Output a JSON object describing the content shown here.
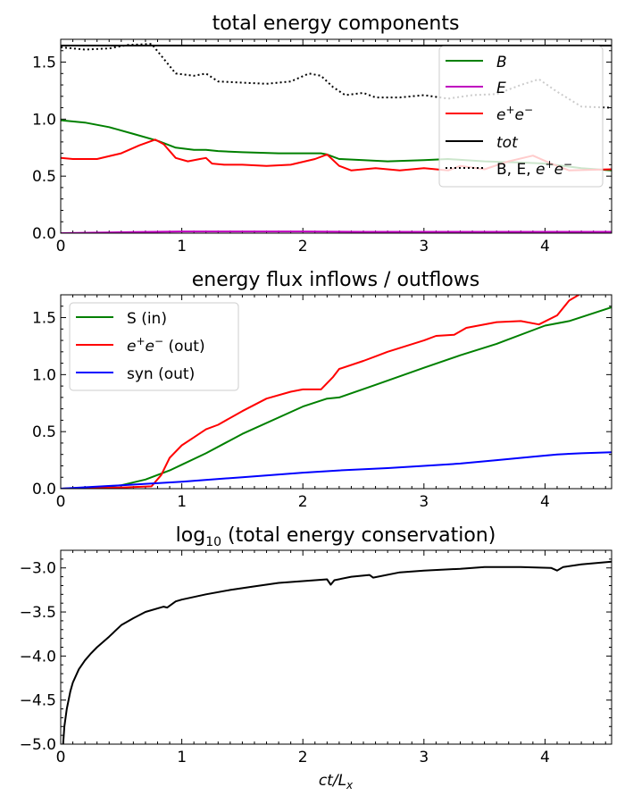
{
  "chart_data": [
    {
      "type": "line",
      "title": "total energy components",
      "xlim": [
        0,
        4.55
      ],
      "ylim": [
        0,
        1.7
      ],
      "xticks": [
        "0",
        "1",
        "2",
        "3",
        "4"
      ],
      "yticks": [
        "0.0",
        "0.5",
        "1.0",
        "1.5"
      ],
      "legend_position": "top-right",
      "series": [
        {
          "key": "B",
          "name": "B",
          "color": "#008000",
          "style": "solid",
          "x": [
            0,
            0.2,
            0.4,
            0.6,
            0.8,
            0.95,
            1.1,
            1.2,
            1.3,
            1.5,
            1.8,
            2.0,
            2.15,
            2.2,
            2.3,
            2.5,
            2.7,
            3.0,
            3.2,
            3.5,
            3.8,
            4.0,
            4.3,
            4.55
          ],
          "y": [
            0.99,
            0.97,
            0.93,
            0.87,
            0.81,
            0.75,
            0.73,
            0.73,
            0.72,
            0.71,
            0.7,
            0.7,
            0.7,
            0.69,
            0.65,
            0.64,
            0.63,
            0.64,
            0.65,
            0.63,
            0.62,
            0.61,
            0.57,
            0.55
          ]
        },
        {
          "key": "E",
          "name": "E",
          "color": "#bf00bf",
          "style": "solid",
          "x": [
            0,
            0.3,
            0.6,
            1.0,
            1.5,
            2.0,
            2.5,
            3.0,
            3.5,
            4.0,
            4.55
          ],
          "y": [
            0.0,
            0.005,
            0.01,
            0.015,
            0.015,
            0.015,
            0.012,
            0.012,
            0.012,
            0.012,
            0.012
          ]
        },
        {
          "key": "ee",
          "name": "e+e−",
          "color": "#ff0000",
          "style": "solid",
          "x": [
            0,
            0.1,
            0.3,
            0.5,
            0.65,
            0.78,
            0.85,
            0.95,
            1.05,
            1.15,
            1.2,
            1.25,
            1.35,
            1.5,
            1.7,
            1.9,
            2.1,
            2.2,
            2.3,
            2.4,
            2.6,
            2.8,
            3.0,
            3.2,
            3.3,
            3.5,
            3.7,
            3.9,
            4.05,
            4.2,
            4.55
          ],
          "y": [
            0.66,
            0.65,
            0.65,
            0.7,
            0.77,
            0.82,
            0.78,
            0.66,
            0.63,
            0.65,
            0.66,
            0.61,
            0.6,
            0.6,
            0.59,
            0.6,
            0.65,
            0.69,
            0.59,
            0.55,
            0.57,
            0.55,
            0.57,
            0.55,
            0.59,
            0.56,
            0.63,
            0.68,
            0.61,
            0.55,
            0.56
          ]
        },
        {
          "key": "tot",
          "name": "tot",
          "color": "#000000",
          "style": "solid",
          "x": [
            0,
            4.55
          ],
          "y": [
            1.645,
            1.645
          ]
        },
        {
          "key": "sum",
          "name": "B, E, e+e−",
          "color": "#000000",
          "style": "dotted",
          "x": [
            0,
            0.2,
            0.4,
            0.55,
            0.75,
            0.85,
            0.95,
            1.1,
            1.2,
            1.3,
            1.5,
            1.7,
            1.9,
            2.05,
            2.15,
            2.25,
            2.35,
            2.5,
            2.6,
            2.8,
            3.0,
            3.2,
            3.4,
            3.6,
            3.8,
            3.95,
            4.1,
            4.3,
            4.55
          ],
          "y": [
            1.63,
            1.61,
            1.62,
            1.65,
            1.66,
            1.53,
            1.4,
            1.38,
            1.4,
            1.33,
            1.32,
            1.31,
            1.33,
            1.4,
            1.38,
            1.28,
            1.21,
            1.23,
            1.19,
            1.19,
            1.21,
            1.18,
            1.21,
            1.22,
            1.3,
            1.35,
            1.24,
            1.11,
            1.1
          ]
        }
      ]
    },
    {
      "type": "line",
      "title": "energy flux inflows / outflows",
      "xlim": [
        0,
        4.55
      ],
      "ylim": [
        0,
        1.7
      ],
      "xticks": [
        "0",
        "1",
        "2",
        "3",
        "4"
      ],
      "yticks": [
        "0.0",
        "0.5",
        "1.0",
        "1.5"
      ],
      "legend_position": "top-left",
      "series": [
        {
          "key": "S",
          "name": "S (in)",
          "color": "#008000",
          "style": "solid",
          "x": [
            0,
            0.3,
            0.5,
            0.7,
            0.9,
            1.0,
            1.2,
            1.5,
            2.0,
            2.2,
            2.3,
            2.6,
            3.0,
            3.3,
            3.6,
            4.0,
            4.2,
            4.55
          ],
          "y": [
            0.0,
            0.01,
            0.03,
            0.08,
            0.16,
            0.21,
            0.31,
            0.48,
            0.72,
            0.79,
            0.8,
            0.91,
            1.06,
            1.17,
            1.27,
            1.43,
            1.47,
            1.59
          ]
        },
        {
          "key": "ee_out",
          "name": "e+e− (out)",
          "color": "#ff0000",
          "style": "solid",
          "x": [
            0,
            0.5,
            0.75,
            0.83,
            0.9,
            1.0,
            1.1,
            1.2,
            1.3,
            1.5,
            1.7,
            1.9,
            2.0,
            2.15,
            2.25,
            2.3,
            2.5,
            2.6,
            2.7,
            3.0,
            3.1,
            3.25,
            3.35,
            3.6,
            3.8,
            3.95,
            4.1,
            4.2,
            4.28
          ],
          "y": [
            0.0,
            0.01,
            0.02,
            0.12,
            0.27,
            0.38,
            0.45,
            0.52,
            0.56,
            0.68,
            0.79,
            0.85,
            0.87,
            0.87,
            0.98,
            1.05,
            1.12,
            1.16,
            1.2,
            1.3,
            1.34,
            1.35,
            1.41,
            1.46,
            1.47,
            1.44,
            1.52,
            1.65,
            1.7
          ]
        },
        {
          "key": "syn",
          "name": "syn (out)",
          "color": "#0000ff",
          "style": "solid",
          "x": [
            0,
            0.5,
            1.0,
            1.5,
            2.0,
            2.3,
            2.7,
            3.0,
            3.3,
            3.6,
            3.9,
            4.1,
            4.3,
            4.55
          ],
          "y": [
            0.0,
            0.03,
            0.06,
            0.1,
            0.14,
            0.16,
            0.18,
            0.2,
            0.22,
            0.25,
            0.28,
            0.3,
            0.31,
            0.32
          ]
        }
      ]
    },
    {
      "type": "line",
      "title": "log10 (total energy conservation)",
      "xlabel": "ct/Lx",
      "xlim": [
        0,
        4.55
      ],
      "ylim": [
        -5.0,
        -2.8
      ],
      "xticks": [
        "0",
        "1",
        "2",
        "3",
        "4"
      ],
      "yticks": [
        "−3.0",
        "−3.5",
        "−4.0",
        "−4.5",
        "−5.0"
      ],
      "series": [
        {
          "key": "cons",
          "name": "",
          "color": "#000000",
          "style": "solid",
          "x": [
            0.02,
            0.03,
            0.05,
            0.08,
            0.1,
            0.15,
            0.2,
            0.25,
            0.3,
            0.4,
            0.5,
            0.6,
            0.7,
            0.85,
            0.88,
            0.95,
            1.0,
            1.2,
            1.4,
            1.6,
            1.8,
            2.0,
            2.2,
            2.23,
            2.26,
            2.4,
            2.55,
            2.58,
            2.8,
            3.0,
            3.3,
            3.5,
            3.8,
            4.05,
            4.1,
            4.15,
            4.3,
            4.55
          ],
          "y": [
            -5.0,
            -4.8,
            -4.6,
            -4.4,
            -4.3,
            -4.15,
            -4.05,
            -3.97,
            -3.9,
            -3.78,
            -3.65,
            -3.57,
            -3.5,
            -3.44,
            -3.45,
            -3.38,
            -3.36,
            -3.3,
            -3.25,
            -3.21,
            -3.17,
            -3.15,
            -3.13,
            -3.19,
            -3.14,
            -3.1,
            -3.08,
            -3.11,
            -3.05,
            -3.03,
            -3.01,
            -2.99,
            -2.99,
            -3.0,
            -3.03,
            -2.99,
            -2.96,
            -2.93
          ]
        }
      ]
    }
  ]
}
